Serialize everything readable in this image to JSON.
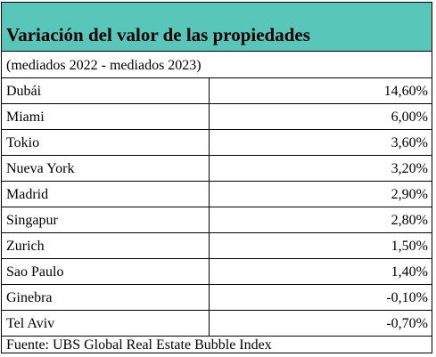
{
  "chart_data": {
    "type": "table",
    "title": "Variación del valor de las propiedades",
    "subtitle": "(mediados 2022 - mediados 2023)",
    "source": "Fuente: UBS Global Real Estate Bubble Index",
    "colors": {
      "header_background": "#58c7ba",
      "border": "#000000"
    },
    "rows": [
      {
        "city": "Dubái",
        "value_text": "14,60%",
        "value": 14.6
      },
      {
        "city": "Miami",
        "value_text": "6,00%",
        "value": 6.0
      },
      {
        "city": "Tokio",
        "value_text": "3,60%",
        "value": 3.6
      },
      {
        "city": "Nueva York",
        "value_text": "3,20%",
        "value": 3.2
      },
      {
        "city": "Madrid",
        "value_text": "2,90%",
        "value": 2.9
      },
      {
        "city": "Singapur",
        "value_text": "2,80%",
        "value": 2.8
      },
      {
        "city": "Zurich",
        "value_text": "1,50%",
        "value": 1.5
      },
      {
        "city": "Sao Paulo",
        "value_text": "1,40%",
        "value": 1.4
      },
      {
        "city": "Ginebra",
        "value_text": "-0,10%",
        "value": -0.1
      },
      {
        "city": "Tel Aviv",
        "value_text": "-0,70%",
        "value": -0.7
      }
    ]
  }
}
